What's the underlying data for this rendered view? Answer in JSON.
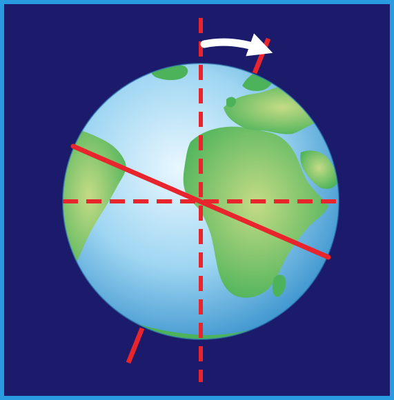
{
  "diagram": {
    "colors": {
      "background": "#1c1a6b",
      "border": "#2a9be0",
      "ocean_light": "#e9f7ff",
      "ocean_mid": "#9fd6f2",
      "ocean_edge": "#3f96cf",
      "land": "#4cb35a",
      "land_highlight": "#c5db86",
      "axis_line": "#e8242c",
      "rotation_arrow": "#ffffff"
    },
    "icons": {
      "globe": "earth-globe-icon",
      "rotation": "curved-arrow-icon"
    },
    "tilt_degrees": 23.5
  }
}
